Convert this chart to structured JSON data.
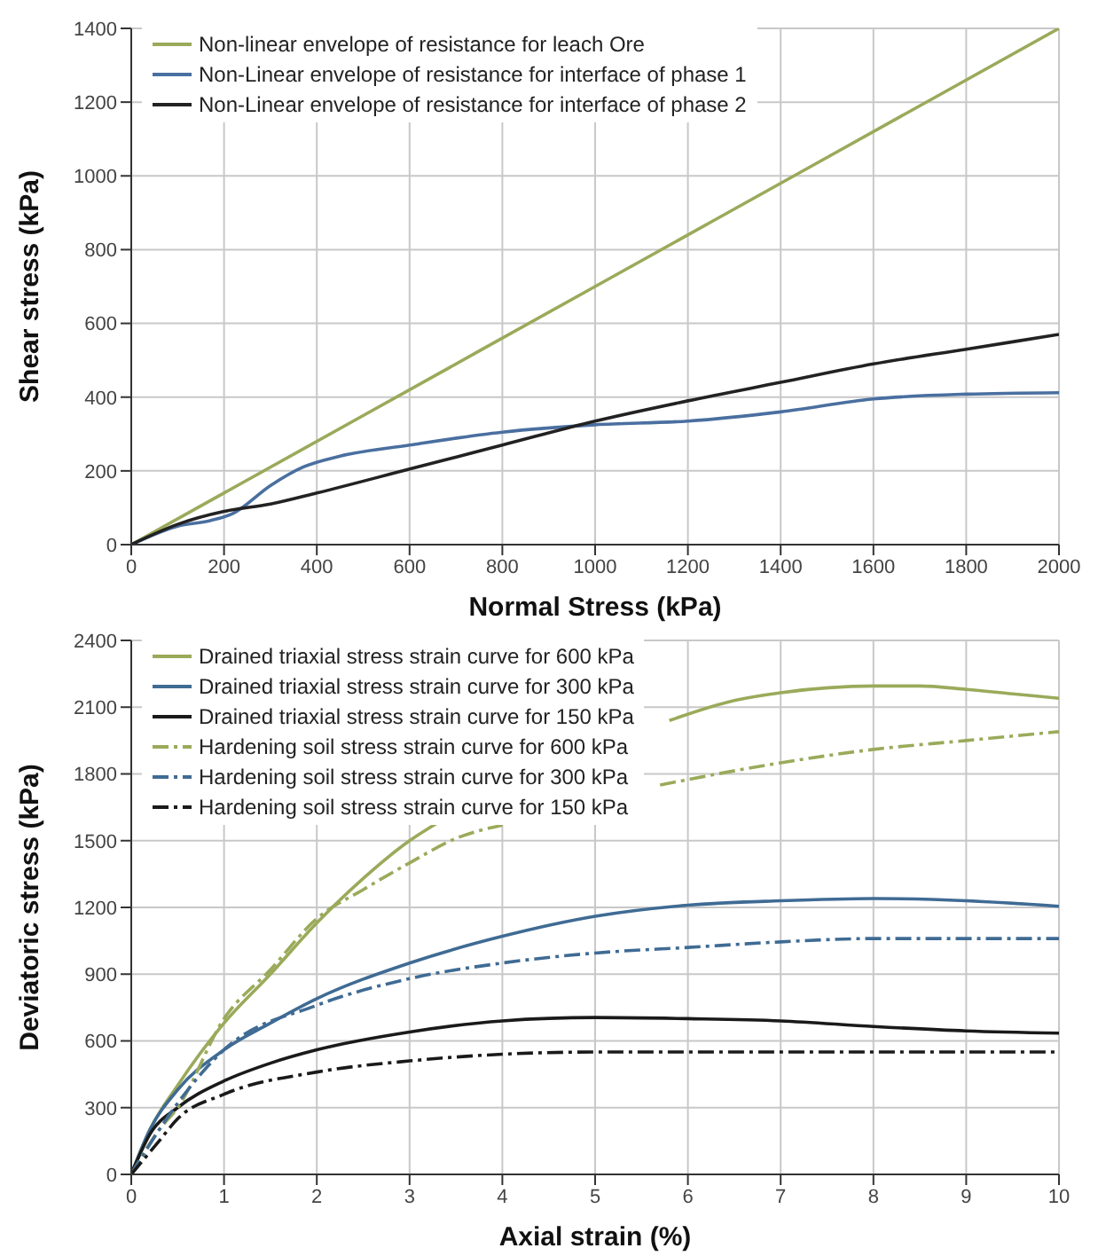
{
  "chart_data": [
    {
      "type": "line",
      "xlabel": "Normal Stress (kPa)",
      "ylabel": "Shear stress (kPa)",
      "xlim": [
        0,
        2000
      ],
      "xticks": [
        0,
        200,
        400,
        600,
        800,
        1000,
        1200,
        1400,
        1600,
        1800,
        2000
      ],
      "ylim": [
        0,
        1400
      ],
      "yticks": [
        0,
        200,
        400,
        600,
        800,
        1000,
        1200,
        1400
      ],
      "grid": true,
      "legend": "top left",
      "marker": "none",
      "series": [
        {
          "name": "Non-linear envelope of resistance for leach Ore",
          "color": "#9aaa5a",
          "line_style": "solid",
          "x": [
            0,
            500,
            1000,
            1500,
            2000
          ],
          "values": [
            0,
            350,
            700,
            1050,
            1400
          ]
        },
        {
          "name": "Non-Linear envelope of resistance for interface of phase 1",
          "color": "#4a6fa0",
          "line_style": "solid",
          "x": [
            0,
            100,
            170,
            220,
            300,
            370,
            450,
            600,
            800,
            1000,
            1200,
            1400,
            1600,
            1800,
            2000
          ],
          "values": [
            0,
            50,
            65,
            85,
            160,
            210,
            240,
            270,
            305,
            325,
            335,
            360,
            395,
            408,
            412
          ]
        },
        {
          "name": "Non-Linear envelope of resistance for interface of phase 2",
          "color": "#222222",
          "line_style": "solid",
          "x": [
            0,
            100,
            200,
            300,
            400,
            600,
            800,
            1000,
            1200,
            1400,
            1600,
            1800,
            2000
          ],
          "values": [
            0,
            55,
            90,
            110,
            140,
            205,
            270,
            335,
            390,
            440,
            490,
            530,
            570
          ]
        }
      ]
    },
    {
      "type": "line",
      "xlabel": "Axial  strain (%)",
      "ylabel": "Deviatoric stress (kPa)",
      "xlim": [
        0,
        10
      ],
      "xticks": [
        0,
        1,
        2,
        3,
        4,
        5,
        6,
        7,
        8,
        9,
        10
      ],
      "ylim": [
        0,
        2400
      ],
      "yticks": [
        0,
        300,
        600,
        900,
        1200,
        1500,
        1800,
        2100,
        2400
      ],
      "grid": true,
      "legend": "top left",
      "marker": "none",
      "series": [
        {
          "name": "Drained triaxial stress strain curve for 600 kPa",
          "color": "#9aaa5a",
          "line_style": "solid",
          "x": [
            0,
            0.2,
            0.5,
            1,
            1.5,
            2,
            2.5,
            3,
            3.3,
            4.5,
            5.8,
            6.5,
            7,
            8,
            8.5,
            9,
            9.5,
            10
          ],
          "values": [
            0,
            200,
            400,
            680,
            900,
            1130,
            1330,
            1500,
            1580,
            null,
            2040,
            2130,
            2165,
            2195,
            2195,
            2180,
            2160,
            2140
          ]
        },
        {
          "name": "Drained triaxial stress strain curve for 300 kPa",
          "color": "#3f6b94",
          "line_style": "solid",
          "x": [
            0,
            0.2,
            0.5,
            1,
            1.5,
            2,
            3,
            4,
            5,
            6,
            7,
            8,
            9,
            10
          ],
          "values": [
            0,
            200,
            380,
            560,
            680,
            790,
            950,
            1070,
            1160,
            1210,
            1230,
            1240,
            1230,
            1205
          ]
        },
        {
          "name": "Drained triaxial stress strain curve for 150 kPa",
          "color": "#1a1a1a",
          "line_style": "solid",
          "x": [
            0,
            0.2,
            0.5,
            1,
            1.5,
            2,
            3,
            4,
            5,
            6,
            7,
            8,
            9,
            10
          ],
          "values": [
            0,
            180,
            300,
            420,
            500,
            560,
            640,
            690,
            705,
            700,
            690,
            665,
            645,
            635
          ]
        },
        {
          "name": "Hardening soil stress strain curve for 600 kPa",
          "color": "#9aaa5a",
          "line_style": "dashed",
          "x": [
            0,
            0.3,
            0.5,
            1,
            1.5,
            2,
            2.5,
            3,
            3.5,
            4,
            5,
            5.7,
            7,
            8,
            9,
            10
          ],
          "values": [
            0,
            200,
            300,
            700,
            920,
            1150,
            1280,
            1400,
            1510,
            1570,
            null,
            1750,
            1850,
            1910,
            1950,
            1990
          ]
        },
        {
          "name": "Hardening soil stress strain curve for 300 kPa",
          "color": "#3f6b94",
          "line_style": "dashed",
          "x": [
            0,
            0.3,
            0.5,
            1,
            2,
            3,
            4,
            5,
            6,
            7,
            8,
            9,
            10
          ],
          "values": [
            0,
            200,
            320,
            560,
            760,
            880,
            950,
            995,
            1020,
            1045,
            1060,
            1060,
            1060
          ]
        },
        {
          "name": "Hardening soil stress strain curve for 150 kPa",
          "color": "#1a1a1a",
          "line_style": "dashed",
          "x": [
            0,
            0.3,
            0.5,
            1,
            2,
            3,
            4,
            5,
            6,
            10
          ],
          "values": [
            0,
            150,
            250,
            360,
            460,
            510,
            540,
            550,
            550,
            550
          ]
        }
      ]
    }
  ]
}
